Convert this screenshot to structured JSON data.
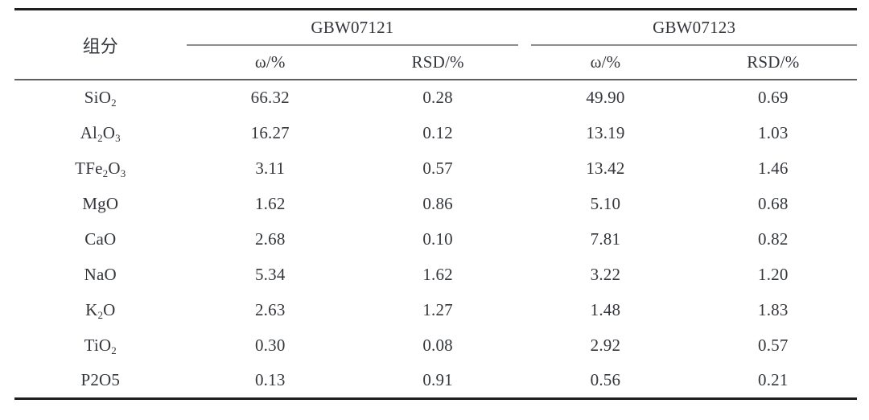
{
  "page": {
    "background": "#ffffff"
  },
  "colors": {
    "text": "#33363b",
    "rule_heavy": "#1e1e1e",
    "rule_mid": "#606060",
    "rule_light": "#8d8d8d",
    "background": "#ffffff"
  },
  "table": {
    "component_header": "组分",
    "groups": [
      {
        "label": "GBW07121",
        "sub_headers": [
          "ω/%",
          "RSD/%"
        ]
      },
      {
        "label": "GBW07123",
        "sub_headers": [
          "ω/%",
          "RSD/%"
        ]
      }
    ],
    "rows": [
      {
        "component": [
          {
            "text": "SiO"
          },
          {
            "text": "2",
            "sub": true
          }
        ],
        "values": [
          "66.32",
          "0.28",
          "49.90",
          "0.69"
        ]
      },
      {
        "component": [
          {
            "text": "Al"
          },
          {
            "text": "2",
            "sub": true
          },
          {
            "text": "O"
          },
          {
            "text": "3",
            "sub": true
          }
        ],
        "values": [
          "16.27",
          "0.12",
          "13.19",
          "1.03"
        ]
      },
      {
        "component": [
          {
            "text": "TFe"
          },
          {
            "text": "2",
            "sub": true
          },
          {
            "text": "O"
          },
          {
            "text": "3",
            "sub": true
          }
        ],
        "values": [
          "3.11",
          "0.57",
          "13.42",
          "1.46"
        ]
      },
      {
        "component": [
          {
            "text": "MgO"
          }
        ],
        "values": [
          "1.62",
          "0.86",
          "5.10",
          "0.68"
        ]
      },
      {
        "component": [
          {
            "text": "CaO"
          }
        ],
        "values": [
          "2.68",
          "0.10",
          "7.81",
          "0.82"
        ]
      },
      {
        "component": [
          {
            "text": "NaO"
          }
        ],
        "values": [
          "5.34",
          "1.62",
          "3.22",
          "1.20"
        ]
      },
      {
        "component": [
          {
            "text": "K"
          },
          {
            "text": "2",
            "sub": true
          },
          {
            "text": "O"
          }
        ],
        "values": [
          "2.63",
          "1.27",
          "1.48",
          "1.83"
        ]
      },
      {
        "component": [
          {
            "text": "TiO"
          },
          {
            "text": "2",
            "sub": true
          }
        ],
        "values": [
          "0.30",
          "0.08",
          "2.92",
          "0.57"
        ]
      },
      {
        "component": [
          {
            "text": "P2O5"
          }
        ],
        "values": [
          "0.13",
          "0.91",
          "0.56",
          "0.21"
        ]
      }
    ]
  }
}
